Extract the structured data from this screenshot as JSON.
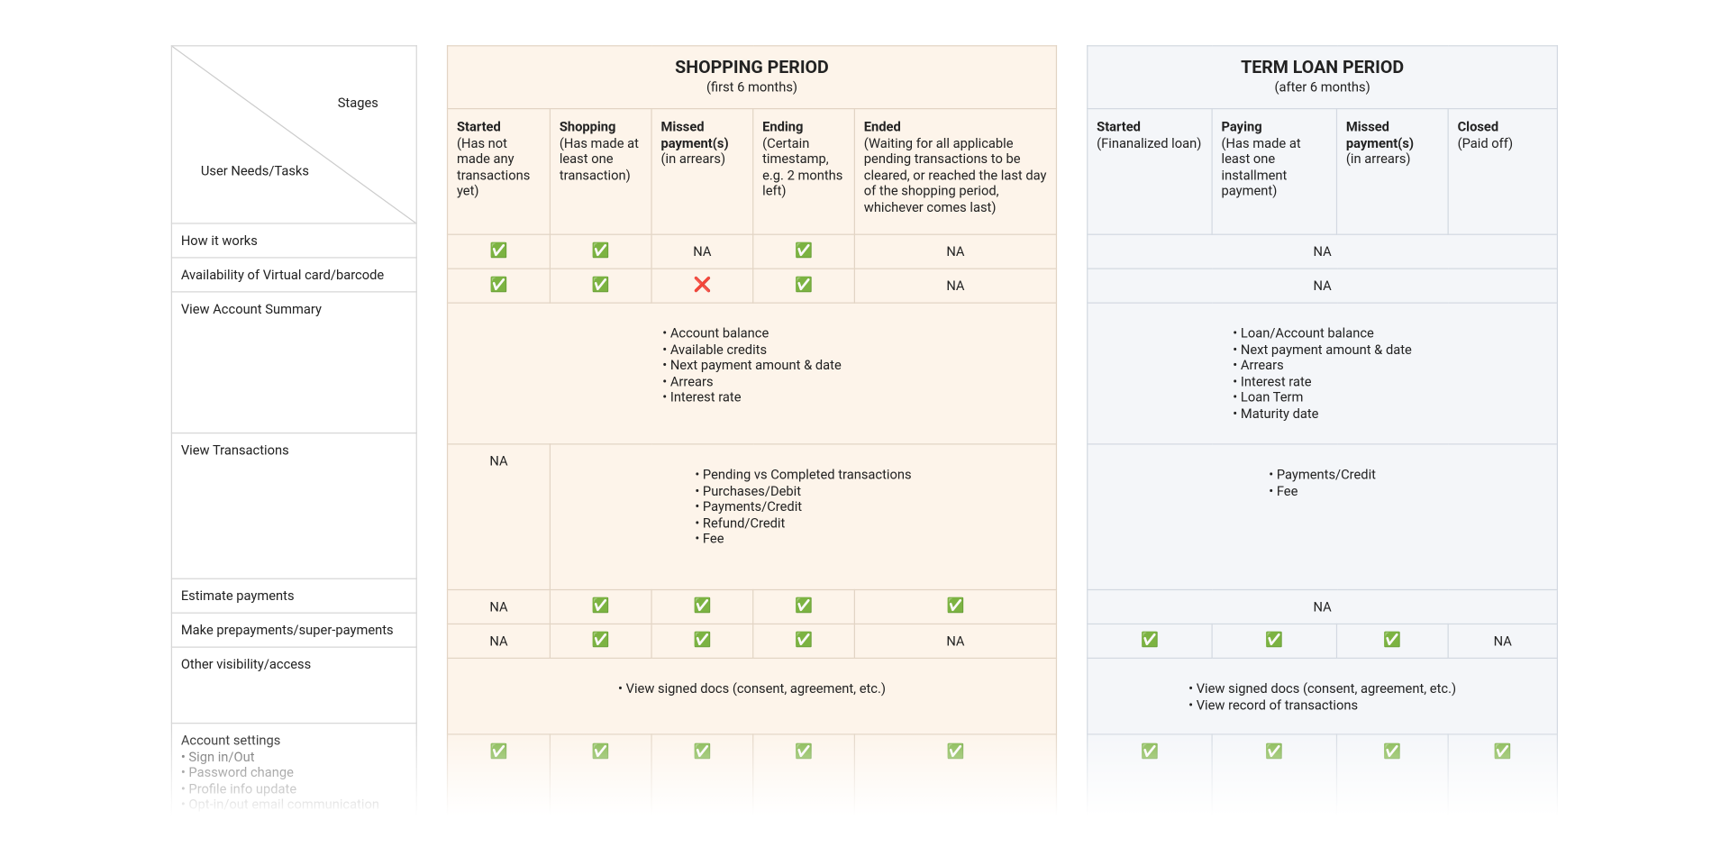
{
  "corner": {
    "top": "Stages",
    "bottom": "User Needs/Tasks"
  },
  "row_labels": [
    "How it works",
    "Availability of Virtual card/barcode",
    "View Account Summary",
    "View Transactions",
    "Estimate payments",
    "Make prepayments/super-payments",
    "Other visibility/access",
    "Account settings"
  ],
  "account_settings_items": [
    "Sign in/Out",
    "Password change",
    "Profile info update",
    "Opt-in/out email communication"
  ],
  "shopping": {
    "title": "SHOPPING PERIOD",
    "subtitle": "(first 6 months)",
    "stages": [
      {
        "name": "Started",
        "desc": "(Has not made any transactions yet)"
      },
      {
        "name": "Shopping",
        "desc": "(Has made at least one transaction)"
      },
      {
        "name": "Missed payment(s)",
        "desc": "(in arrears)"
      },
      {
        "name": "Ending",
        "desc": "(Certain timestamp, e.g. 2 months left)"
      },
      {
        "name": "Ended",
        "desc": "(Waiting for all applicable pending transactions to be cleared, or reached the last day of the shopping period, whichever comes last)"
      }
    ],
    "rows": [
      [
        "✅",
        "✅",
        "NA",
        "✅",
        "NA"
      ],
      [
        "✅",
        "✅",
        "❌",
        "✅",
        "NA"
      ],
      [
        [
          "Account balance",
          "Available credits",
          "Next payment amount & date",
          "Arrears",
          "Interest rate"
        ]
      ],
      [
        "NA",
        [
          "Pending vs Completed transactions",
          "Purchases/Debit",
          "Payments/Credit",
          "Refund/Credit",
          "Fee"
        ]
      ],
      [
        "NA",
        "✅",
        "✅",
        "✅",
        "✅"
      ],
      [
        "NA",
        "✅",
        "✅",
        "✅",
        "NA"
      ],
      [
        [
          "View signed docs (consent, agreement, etc.)"
        ]
      ],
      [
        "✅",
        "✅",
        "✅",
        "✅",
        "✅"
      ]
    ]
  },
  "term_loan": {
    "title": "TERM LOAN PERIOD",
    "subtitle": "(after 6 months)",
    "stages": [
      {
        "name": "Started",
        "desc": "(Finanalized loan)"
      },
      {
        "name": "Paying",
        "desc": "(Has made at least one installment payment)"
      },
      {
        "name": "Missed payment(s)",
        "desc": "(in arrears)"
      },
      {
        "name": "Closed",
        "desc": "(Paid off)"
      }
    ],
    "rows": [
      [
        "NA"
      ],
      [
        "NA"
      ],
      [
        [
          "Loan/Account balance",
          "Next payment amount & date",
          "Arrears",
          "Interest rate",
          "Loan Term",
          "Maturity date"
        ]
      ],
      [
        [
          "Payments/Credit",
          "Fee"
        ]
      ],
      [
        "NA"
      ],
      [
        "✅",
        "✅",
        "✅",
        "NA"
      ],
      [
        [
          "View signed docs (consent, agreement, etc.)",
          "View record of transactions"
        ]
      ],
      [
        "✅",
        "✅",
        "✅",
        "✅"
      ]
    ]
  }
}
